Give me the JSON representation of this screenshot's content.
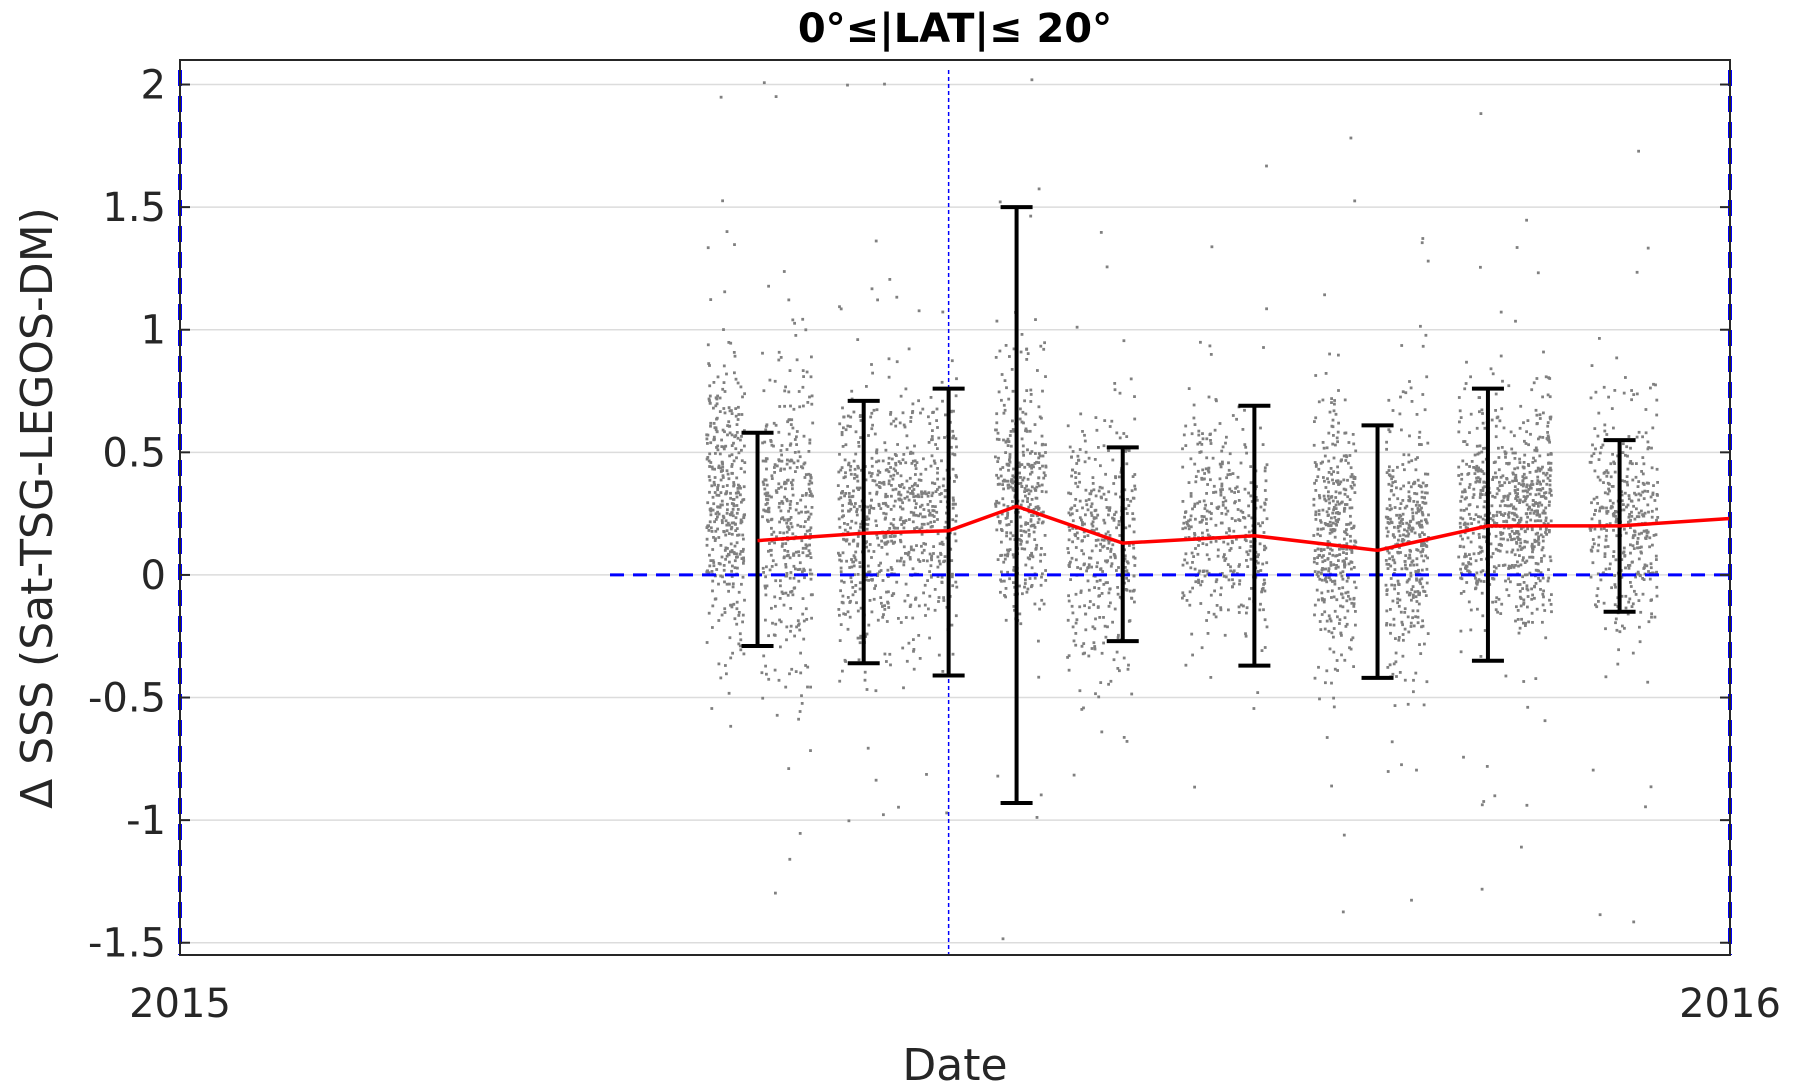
{
  "chart_data": {
    "type": "scatter",
    "title": "0°≤|LAT|≤ 20°",
    "xlabel": "Date",
    "ylabel": "Δ SSS (Sat-TSG-LEGOS-DM)",
    "x_axis": {
      "type": "date",
      "range": [
        "2015-01-01",
        "2016-01-01"
      ],
      "tick_labels": [
        "2015",
        "2016"
      ]
    },
    "y_axis": {
      "range": [
        -1.55,
        2.1
      ],
      "ticks": [
        -1.5,
        -1,
        -0.5,
        0,
        0.5,
        1,
        1.5,
        2
      ],
      "tick_labels": [
        "-1.5",
        "-1",
        "-0.5",
        "0",
        "0.5",
        "1",
        "1.5",
        "2"
      ]
    },
    "grid": true,
    "zero_line": {
      "y": 0,
      "style": "dashed",
      "color": "#0000ff"
    },
    "vertical_lines": [
      {
        "x": "2015-01-01",
        "style": "dashed",
        "color": "#0000ff"
      },
      {
        "x": "2015-07-01",
        "style": "dotted",
        "color": "#0000ff"
      },
      {
        "x": "2016-01-01",
        "style": "dashed",
        "color": "#0000ff"
      }
    ],
    "colors": {
      "points": "#808080",
      "mean_line": "#ff0000",
      "error_bars": "#000000",
      "reference": "#0000ff"
    },
    "scatter_clusters": [
      {
        "x_start": "2015-05-05",
        "x_end": "2015-05-14",
        "center": 0.3,
        "spread": 0.5
      },
      {
        "x_start": "2015-05-18",
        "x_end": "2015-05-30",
        "center": 0.2,
        "spread": 0.6
      },
      {
        "x_start": "2015-06-05",
        "x_end": "2015-06-18",
        "center": 0.2,
        "spread": 0.5
      },
      {
        "x_start": "2015-06-18",
        "x_end": "2015-07-03",
        "center": 0.25,
        "spread": 0.45
      },
      {
        "x_start": "2015-07-12",
        "x_end": "2015-07-24",
        "center": 0.3,
        "spread": 0.45
      },
      {
        "x_start": "2015-07-29",
        "x_end": "2015-08-14",
        "center": 0.15,
        "spread": 0.45
      },
      {
        "x_start": "2015-08-25",
        "x_end": "2015-09-14",
        "center": 0.2,
        "spread": 0.4
      },
      {
        "x_start": "2015-09-25",
        "x_end": "2015-10-05",
        "center": 0.15,
        "spread": 0.45
      },
      {
        "x_start": "2015-10-12",
        "x_end": "2015-10-22",
        "center": 0.1,
        "spread": 0.45
      },
      {
        "x_start": "2015-10-29",
        "x_end": "2015-11-11",
        "center": 0.25,
        "spread": 0.4
      },
      {
        "x_start": "2015-11-11",
        "x_end": "2015-11-20",
        "center": 0.25,
        "spread": 0.4
      },
      {
        "x_start": "2015-11-29",
        "x_end": "2015-12-15",
        "center": 0.2,
        "spread": 0.4
      }
    ],
    "series": [
      {
        "type": "line",
        "x": [
          "2015-05-17",
          "2015-06-11",
          "2015-07-01",
          "2015-07-17",
          "2015-08-11",
          "2015-09-11",
          "2015-10-10",
          "2015-11-05",
          "2015-12-06",
          "2016-01-01"
        ],
        "y": [
          0.14,
          0.17,
          0.18,
          0.28,
          0.13,
          0.16,
          0.1,
          0.2,
          0.2,
          0.23
        ]
      },
      {
        "type": "errorbar",
        "x": [
          "2015-05-17",
          "2015-06-11",
          "2015-07-01",
          "2015-07-17",
          "2015-08-11",
          "2015-09-11",
          "2015-10-10",
          "2015-11-05",
          "2015-12-06"
        ],
        "upper": [
          0.58,
          0.71,
          0.76,
          1.5,
          0.52,
          0.69,
          0.61,
          0.76,
          0.55
        ],
        "lower": [
          -0.29,
          -0.36,
          -0.41,
          -0.93,
          -0.27,
          -0.37,
          -0.42,
          -0.35,
          -0.15
        ]
      }
    ]
  }
}
